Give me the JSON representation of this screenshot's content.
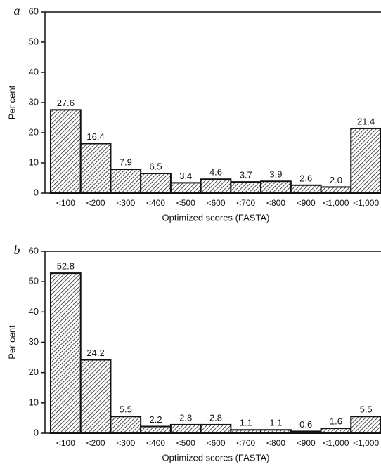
{
  "chart_data": [
    {
      "type": "bar",
      "panel_label": "a",
      "ylabel": "Per cent",
      "xlabel": "Optimized scores (FASTA)",
      "categories": [
        "<100",
        "<200",
        "<300",
        "<400",
        "<500",
        "<600",
        "<700",
        "<800",
        "<900",
        "<1,000",
        "<1,000"
      ],
      "values": [
        27.6,
        16.4,
        7.9,
        6.5,
        3.4,
        4.6,
        3.7,
        3.9,
        2.6,
        2.0,
        21.4
      ],
      "value_labels": [
        "27.6",
        "16.4",
        "7.9",
        "6.5",
        "3.4",
        "4.6",
        "3.7",
        "3.9",
        "2.6",
        "2.0",
        "21.4"
      ],
      "ylim": [
        0,
        60
      ],
      "yticks": [
        0,
        10,
        20,
        30,
        40,
        50,
        60
      ],
      "color": "#111111"
    },
    {
      "type": "bar",
      "panel_label": "b",
      "ylabel": "Per cent",
      "xlabel": "Optimized scores (FASTA)",
      "categories": [
        "<100",
        "<200",
        "<300",
        "<400",
        "<500",
        "<600",
        "<700",
        "<800",
        "<900",
        "<1,000",
        "<1,000"
      ],
      "values": [
        52.8,
        24.2,
        5.5,
        2.2,
        2.8,
        2.8,
        1.1,
        1.1,
        0.6,
        1.6,
        5.5
      ],
      "value_labels": [
        "52.8",
        "24.2",
        "5.5",
        "2.2",
        "2.8",
        "2.8",
        "1.1",
        "1.1",
        "0.6",
        "1.6",
        "5.5"
      ],
      "ylim": [
        0,
        60
      ],
      "yticks": [
        0,
        10,
        20,
        30,
        40,
        50,
        60
      ],
      "color": "#111111"
    }
  ]
}
